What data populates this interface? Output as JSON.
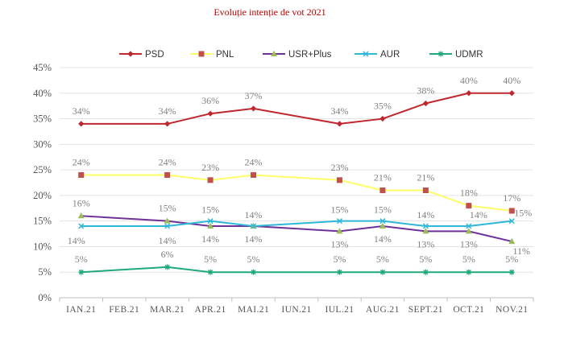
{
  "chart_data": {
    "type": "line",
    "title": "Evoluție intenție de vot 2021",
    "xlabel": "",
    "ylabel": "",
    "categories": [
      "IAN.21",
      "FEB.21",
      "MAR.21",
      "APR.21",
      "MAI.21",
      "IUN.21",
      "IUL.21",
      "AUG.21",
      "SEPT.21",
      "OCT.21",
      "NOV.21"
    ],
    "y_ticks": [
      "0%",
      "5%",
      "10%",
      "15%",
      "20%",
      "25%",
      "30%",
      "35%",
      "40%",
      "45%"
    ],
    "ylim": [
      0,
      45
    ],
    "grid": "horizontal",
    "legend_position": "top",
    "series": [
      {
        "name": "PSD",
        "color": "#c0262d",
        "marker": "diamond",
        "values": [
          34,
          null,
          34,
          36,
          37,
          null,
          34,
          35,
          38,
          40,
          40
        ],
        "labels": [
          "34%",
          null,
          "34%",
          "36%",
          "37%",
          null,
          "34%",
          "35%",
          "38%",
          "40%",
          "40%"
        ]
      },
      {
        "name": "PNL",
        "color": "#ffff66",
        "marker_color": "#c0504d",
        "marker": "square",
        "values": [
          24,
          null,
          24,
          23,
          24,
          null,
          23,
          21,
          21,
          18,
          17
        ],
        "labels": [
          "24%",
          null,
          "24%",
          "23%",
          "24%",
          null,
          "23%",
          "21%",
          "21%",
          "18%",
          "17%"
        ]
      },
      {
        "name": "USR+Plus",
        "color": "#6f3198",
        "marker_color": "#9bbb59",
        "marker": "triangle",
        "values": [
          16,
          null,
          15,
          14,
          14,
          null,
          13,
          14,
          13,
          13,
          11
        ],
        "labels": [
          "16%",
          null,
          "15%",
          "14%",
          "14%",
          null,
          "13%",
          "14%",
          "13%",
          "13%",
          "11%"
        ]
      },
      {
        "name": "AUR",
        "color": "#2eb7d9",
        "marker": "x",
        "values": [
          14,
          null,
          14,
          15,
          14,
          null,
          15,
          15,
          14,
          14,
          15
        ],
        "labels": [
          "14%",
          null,
          "14%",
          "15%",
          "14%",
          null,
          "15%",
          "15%",
          "14%",
          "14%",
          "15%"
        ]
      },
      {
        "name": "UDMR",
        "color": "#1fa97c",
        "marker": "star",
        "values": [
          5,
          null,
          6,
          5,
          5,
          null,
          5,
          5,
          5,
          5,
          5
        ],
        "labels": [
          "5%",
          null,
          "6%",
          "5%",
          "5%",
          null,
          "5%",
          "5%",
          "5%",
          "5%",
          "5%"
        ]
      }
    ]
  }
}
